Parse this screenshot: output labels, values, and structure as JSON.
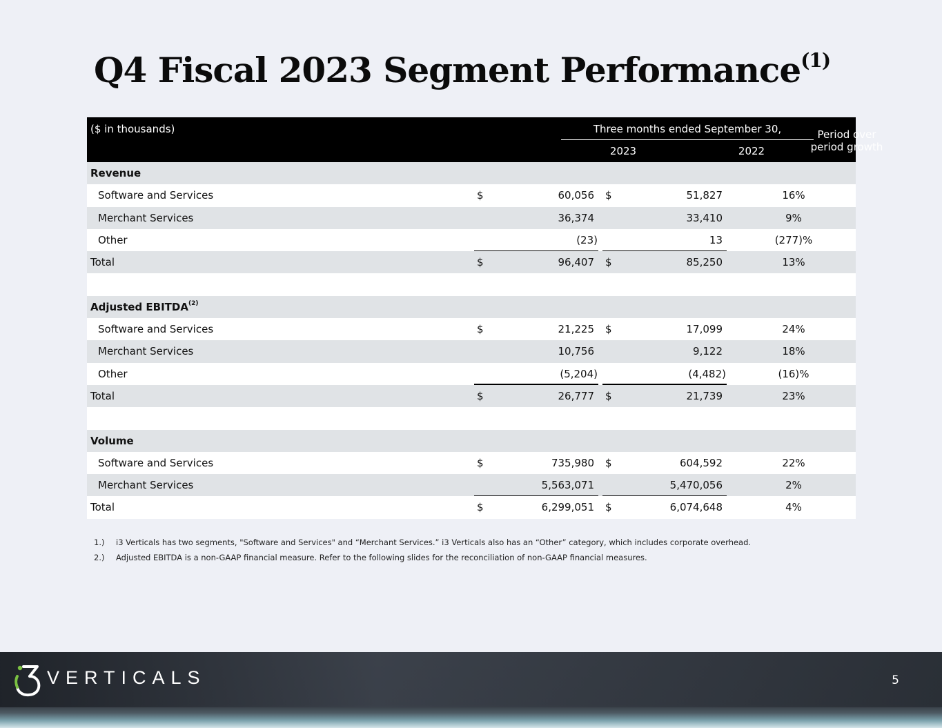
{
  "title": {
    "text": "Q4 Fiscal 2023 Segment Performance",
    "sup": "(1)"
  },
  "table": {
    "units": "($ in thousands)",
    "period_header": "Three months ended September 30,",
    "year1": "2023",
    "year2": "2022",
    "growth_header": "Period over period growth",
    "rows": [
      {
        "label": "Revenue",
        "type": "section"
      },
      {
        "label": "Software and Services",
        "cur1": "$",
        "v1": "60,056",
        "cur2": "$",
        "v2": "51,827",
        "growth": "16%"
      },
      {
        "label": "Merchant Services",
        "cur1": "",
        "v1": "36,374",
        "cur2": "",
        "v2": "33,410",
        "growth": "9%"
      },
      {
        "label": "Other",
        "cur1": "",
        "v1": "(23)",
        "cur2": "",
        "v2": "13",
        "growth": "(277)%"
      },
      {
        "label": "Total",
        "cur1": "$",
        "v1": "96,407",
        "cur2": "$",
        "v2": "85,250",
        "growth": "13%"
      },
      {
        "label": "",
        "type": "blank"
      },
      {
        "label": "Adjusted EBITDA",
        "sup": "(2)",
        "type": "section"
      },
      {
        "label": "Software and Services",
        "cur1": "$",
        "v1": "21,225",
        "cur2": "$",
        "v2": "17,099",
        "growth": "24%"
      },
      {
        "label": "Merchant Services",
        "cur1": "",
        "v1": "10,756",
        "cur2": "",
        "v2": "9,122",
        "growth": "18%"
      },
      {
        "label": "Other",
        "cur1": "",
        "v1": "(5,204)",
        "cur2": "",
        "v2": "(4,482)",
        "growth": "(16)%"
      },
      {
        "label": "Total",
        "cur1": "$",
        "v1": "26,777",
        "cur2": "$",
        "v2": "21,739",
        "growth": "23%"
      },
      {
        "label": "",
        "type": "blank"
      },
      {
        "label": "Volume",
        "type": "section"
      },
      {
        "label": "Software and Services",
        "cur1": "$",
        "v1": "735,980",
        "cur2": "$",
        "v2": "604,592",
        "growth": "22%"
      },
      {
        "label": "Merchant Services",
        "cur1": "",
        "v1": "5,563,071",
        "cur2": "",
        "v2": "5,470,056",
        "growth": "2%"
      },
      {
        "label": "Total",
        "cur1": "$",
        "v1": "6,299,051",
        "cur2": "$",
        "v2": "6,074,648",
        "growth": "4%"
      }
    ]
  },
  "notes": [
    {
      "num": "1.)",
      "text": "i3 Verticals has two segments, \"Software and Services\" and “Merchant Services.”  i3 Verticals also has an “Other” category, which includes corporate overhead."
    },
    {
      "num": "2.)",
      "text": "Adjusted EBITDA is a non-GAAP financial measure. Refer to the following slides for the reconciliation of non-GAAP financial measures."
    }
  ],
  "footer": {
    "brand": "VERTICALS",
    "page_number": "5"
  },
  "colors": {
    "header_bg": "#000000",
    "shade_row": "#e0e3e6",
    "logo_green": "#7bc142"
  }
}
